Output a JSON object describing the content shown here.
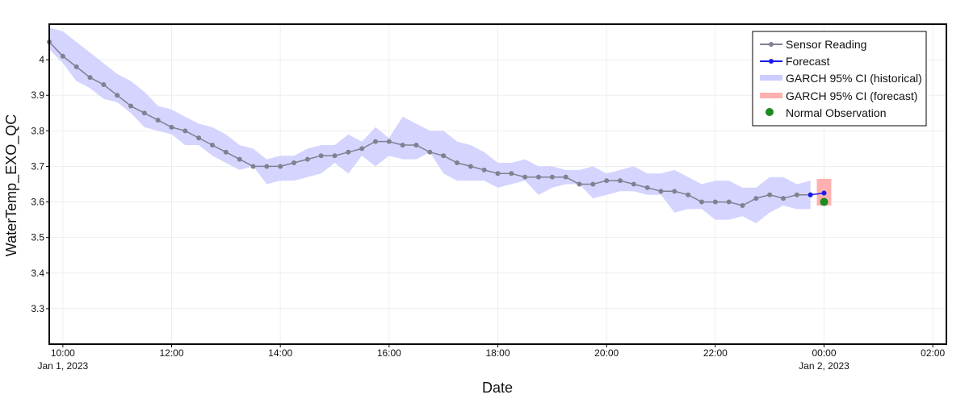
{
  "chart_data": {
    "type": "line",
    "title": "",
    "xlabel": "Date",
    "ylabel": "WaterTemp_EXO_QC",
    "x_range": [
      "2023-01-01T09:45",
      "2023-01-02T02:15"
    ],
    "ylim": [
      3.2,
      4.1
    ],
    "y_ticks": [
      3.3,
      3.4,
      3.5,
      3.6,
      3.7,
      3.8,
      3.9,
      4
    ],
    "x_ticks": [
      {
        "t": "2023-01-01T10:00",
        "label": "10:00",
        "sublabel": "Jan 1, 2023"
      },
      {
        "t": "2023-01-01T12:00",
        "label": "12:00",
        "sublabel": ""
      },
      {
        "t": "2023-01-01T14:00",
        "label": "14:00",
        "sublabel": ""
      },
      {
        "t": "2023-01-01T16:00",
        "label": "16:00",
        "sublabel": ""
      },
      {
        "t": "2023-01-01T18:00",
        "label": "18:00",
        "sublabel": ""
      },
      {
        "t": "2023-01-01T20:00",
        "label": "20:00",
        "sublabel": ""
      },
      {
        "t": "2023-01-01T22:00",
        "label": "22:00",
        "sublabel": ""
      },
      {
        "t": "2023-01-02T00:00",
        "label": "00:00",
        "sublabel": "Jan 2, 2023"
      },
      {
        "t": "2023-01-02T02:00",
        "label": "02:00",
        "sublabel": ""
      }
    ],
    "grid": true,
    "legend_position": "top-right",
    "sensor": {
      "name": "Sensor Reading",
      "color": "#808090",
      "start": "2023-01-01T09:45",
      "interval_minutes": 15,
      "values": [
        4.05,
        4.01,
        3.98,
        3.95,
        3.93,
        3.9,
        3.87,
        3.85,
        3.83,
        3.81,
        3.8,
        3.78,
        3.76,
        3.74,
        3.72,
        3.7,
        3.7,
        3.7,
        3.71,
        3.72,
        3.73,
        3.73,
        3.74,
        3.75,
        3.77,
        3.77,
        3.76,
        3.76,
        3.74,
        3.73,
        3.71,
        3.7,
        3.69,
        3.68,
        3.68,
        3.67,
        3.67,
        3.67,
        3.67,
        3.65,
        3.65,
        3.66,
        3.66,
        3.65,
        3.64,
        3.63,
        3.63,
        3.62,
        3.6,
        3.6,
        3.6,
        3.59,
        3.61,
        3.62,
        3.61,
        3.62,
        3.62
      ]
    },
    "historical_ci": {
      "name": "GARCH 95% CI (historical)",
      "color": "#ccccff",
      "lower": [
        4.03,
        3.99,
        3.94,
        3.92,
        3.89,
        3.88,
        3.85,
        3.81,
        3.8,
        3.79,
        3.76,
        3.76,
        3.73,
        3.71,
        3.69,
        3.7,
        3.65,
        3.66,
        3.66,
        3.67,
        3.68,
        3.71,
        3.68,
        3.73,
        3.7,
        3.73,
        3.72,
        3.72,
        3.74,
        3.68,
        3.66,
        3.66,
        3.66,
        3.64,
        3.65,
        3.66,
        3.62,
        3.64,
        3.65,
        3.65,
        3.61,
        3.62,
        3.63,
        3.63,
        3.62,
        3.62,
        3.57,
        3.58,
        3.58,
        3.55,
        3.55,
        3.56,
        3.54,
        3.57,
        3.59,
        3.58,
        3.58
      ],
      "upper": [
        4.09,
        4.08,
        4.05,
        4.02,
        3.99,
        3.96,
        3.94,
        3.91,
        3.87,
        3.86,
        3.84,
        3.82,
        3.81,
        3.79,
        3.76,
        3.75,
        3.72,
        3.73,
        3.73,
        3.75,
        3.76,
        3.76,
        3.79,
        3.77,
        3.81,
        3.78,
        3.84,
        3.82,
        3.8,
        3.8,
        3.77,
        3.76,
        3.74,
        3.71,
        3.71,
        3.72,
        3.7,
        3.7,
        3.69,
        3.69,
        3.7,
        3.68,
        3.69,
        3.7,
        3.68,
        3.68,
        3.69,
        3.67,
        3.65,
        3.66,
        3.66,
        3.64,
        3.64,
        3.67,
        3.67,
        3.65,
        3.66
      ]
    },
    "forecast": {
      "name": "Forecast",
      "color": "#1a1aee",
      "points": [
        {
          "t": "2023-01-01T23:45",
          "y": 3.62
        },
        {
          "t": "2023-01-02T00:00",
          "y": 3.625
        }
      ]
    },
    "forecast_ci": {
      "name": "GARCH 95% CI (forecast)",
      "color": "#ffb0b0",
      "t0": "2023-01-01T23:52",
      "t1": "2023-01-02T00:08",
      "lower": 3.59,
      "upper": 3.665
    },
    "observation": {
      "name": "Normal Observation",
      "color": "#1e8a1e",
      "t": "2023-01-02T00:00",
      "y": 3.6
    }
  }
}
